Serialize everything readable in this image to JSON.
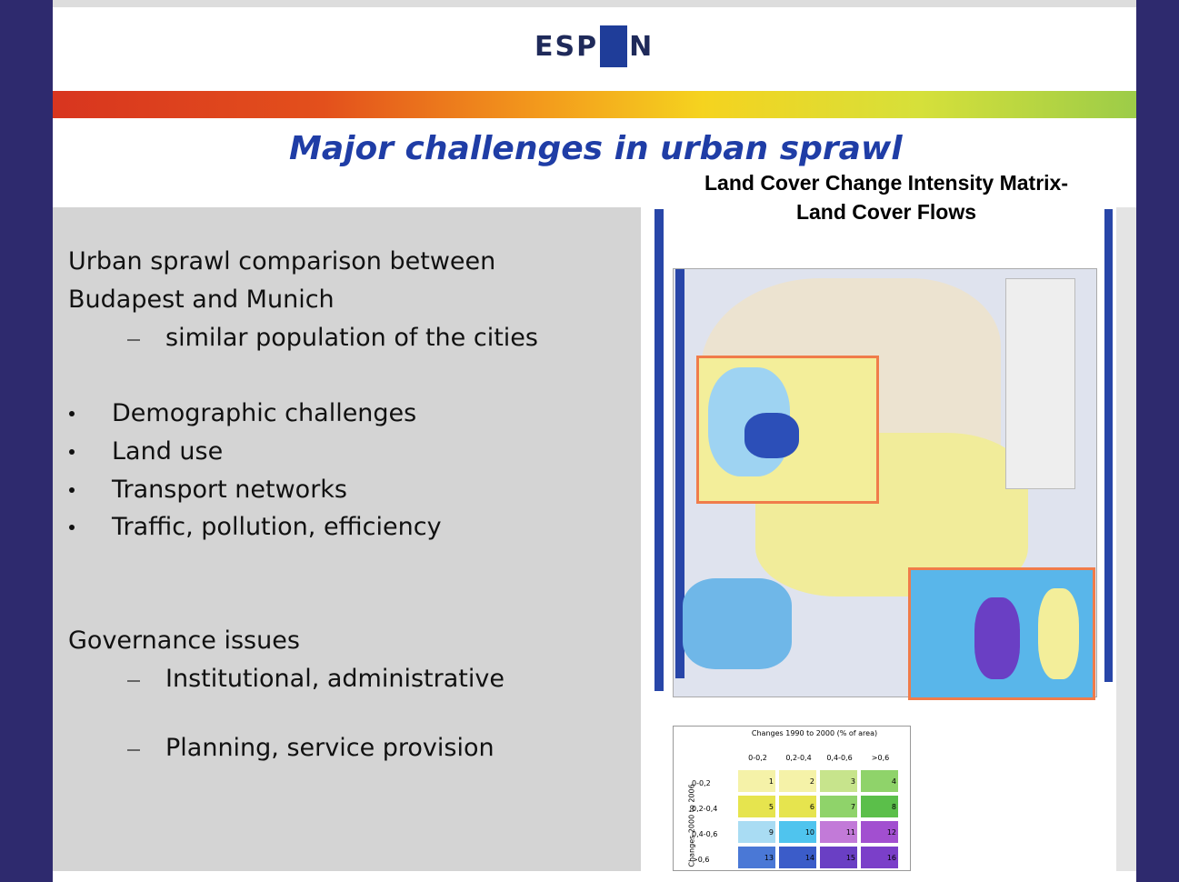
{
  "header": {
    "logo": {
      "left": "ESP",
      "right": "N"
    }
  },
  "title": "Major challenges in urban sprawl",
  "map_title": [
    "Land Cover Change Intensity Matrix-",
    "Land Cover Flows"
  ],
  "content": [
    {
      "text": "Urban sprawl comparison between",
      "kind": "para"
    },
    {
      "text": "Budapest and Munich",
      "kind": "para"
    },
    {
      "text": "similar population of the cities",
      "kind": "dash"
    },
    {
      "text": "Demographic challenges",
      "kind": "bullet"
    },
    {
      "text": "Land use",
      "kind": "bullet"
    },
    {
      "text": "Transport networks",
      "kind": "bullet"
    },
    {
      "text": "Traffic, pollution, efficiency",
      "kind": "bullet"
    },
    {
      "text": "Governance issues",
      "kind": "para"
    },
    {
      "text": "Institutional, administrative",
      "kind": "dash"
    },
    {
      "text": "Planning, service provision",
      "kind": "dash"
    }
  ],
  "matrix": {
    "title": "Changes 1990 to 2000 (% of area)",
    "row_axis": "Changes 2000 to 2006",
    "columns": [
      "0-0,2",
      "0,2-0,4",
      "0,4-0,6",
      ">0,6"
    ],
    "rows": [
      "0-0,2",
      "0,2-0,4",
      "0,4-0,6",
      ">0,6"
    ],
    "cells": [
      [
        1,
        2,
        3,
        4
      ],
      [
        5,
        6,
        7,
        8
      ],
      [
        9,
        10,
        11,
        12
      ],
      [
        13,
        14,
        15,
        16
      ]
    ]
  }
}
